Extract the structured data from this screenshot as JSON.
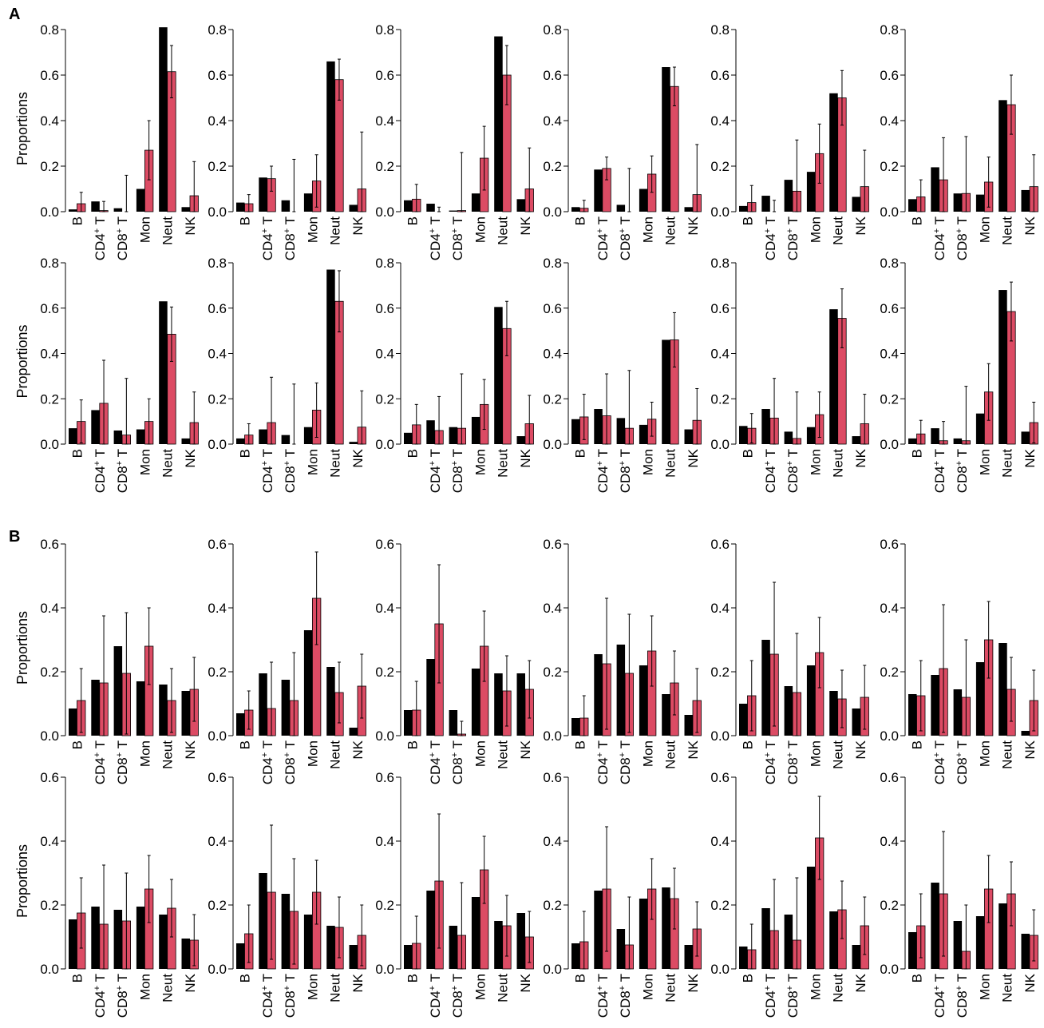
{
  "panels": [
    {
      "label": "A",
      "ylabel": "Proportions",
      "yticks": [
        "0.0",
        "0.2",
        "0.4",
        "0.6",
        "0.8"
      ],
      "ylim": [
        0,
        0.8
      ]
    },
    {
      "label": "B",
      "ylabel": "Proportions",
      "yticks": [
        "0.0",
        "0.2",
        "0.4",
        "0.6"
      ],
      "ylim": [
        0,
        0.6
      ]
    }
  ],
  "categories": [
    {
      "text": "B",
      "sup": "",
      "suffix": ""
    },
    {
      "text": "CD4",
      "sup": "+",
      "suffix": " T"
    },
    {
      "text": "CD8",
      "sup": "+",
      "suffix": " T"
    },
    {
      "text": "Mon",
      "sup": "",
      "suffix": ""
    },
    {
      "text": "Neut",
      "sup": "",
      "suffix": ""
    },
    {
      "text": "NK",
      "sup": "",
      "suffix": ""
    }
  ],
  "colors": {
    "series1": "#000000",
    "series2": "#dc4b64",
    "stroke": "#000000"
  },
  "chart_data": [
    {
      "type": "bar",
      "panel": "A",
      "row": 1,
      "col": 1,
      "ylim": [
        0,
        0.8
      ],
      "black": [
        0.01,
        0.045,
        0.015,
        0.1,
        0.81,
        0.02
      ],
      "red": [
        0.035,
        0.005,
        0.0,
        0.27,
        0.615,
        0.07
      ],
      "red_err": [
        0.05,
        0.04,
        0.16,
        0.13,
        0.115,
        0.15
      ]
    },
    {
      "type": "bar",
      "panel": "A",
      "row": 1,
      "col": 2,
      "ylim": [
        0,
        0.8
      ],
      "black": [
        0.04,
        0.15,
        0.05,
        0.08,
        0.66,
        0.03
      ],
      "red": [
        0.035,
        0.145,
        0.0,
        0.135,
        0.58,
        0.1
      ],
      "red_err": [
        0.04,
        0.055,
        0.23,
        0.115,
        0.09,
        0.25
      ]
    },
    {
      "type": "bar",
      "panel": "A",
      "row": 1,
      "col": 3,
      "ylim": [
        0,
        0.8
      ],
      "black": [
        0.05,
        0.035,
        0.005,
        0.08,
        0.77,
        0.055
      ],
      "red": [
        0.055,
        0.0,
        0.005,
        0.235,
        0.6,
        0.1
      ],
      "red_err": [
        0.065,
        0.02,
        0.255,
        0.14,
        0.13,
        0.18
      ]
    },
    {
      "type": "bar",
      "panel": "A",
      "row": 1,
      "col": 4,
      "ylim": [
        0,
        0.8
      ],
      "black": [
        0.02,
        0.185,
        0.03,
        0.1,
        0.635,
        0.02
      ],
      "red": [
        0.015,
        0.19,
        0.0,
        0.165,
        0.55,
        0.075
      ],
      "red_err": [
        0.035,
        0.05,
        0.19,
        0.08,
        0.085,
        0.22
      ]
    },
    {
      "type": "bar",
      "panel": "A",
      "row": 1,
      "col": 5,
      "ylim": [
        0,
        0.8
      ],
      "black": [
        0.025,
        0.07,
        0.14,
        0.175,
        0.52,
        0.065
      ],
      "red": [
        0.04,
        0.0,
        0.09,
        0.255,
        0.5,
        0.11
      ],
      "red_err": [
        0.075,
        0.05,
        0.225,
        0.13,
        0.12,
        0.16
      ]
    },
    {
      "type": "bar",
      "panel": "A",
      "row": 1,
      "col": 6,
      "ylim": [
        0,
        0.8
      ],
      "black": [
        0.055,
        0.195,
        0.08,
        0.075,
        0.49,
        0.095
      ],
      "red": [
        0.065,
        0.14,
        0.08,
        0.13,
        0.47,
        0.11
      ],
      "red_err": [
        0.075,
        0.185,
        0.25,
        0.11,
        0.13,
        0.14
      ]
    },
    {
      "type": "bar",
      "panel": "A",
      "row": 2,
      "col": 1,
      "ylim": [
        0,
        0.8
      ],
      "black": [
        0.07,
        0.15,
        0.06,
        0.065,
        0.63,
        0.025
      ],
      "red": [
        0.1,
        0.18,
        0.04,
        0.1,
        0.485,
        0.095
      ],
      "red_err": [
        0.095,
        0.19,
        0.25,
        0.1,
        0.12,
        0.135
      ]
    },
    {
      "type": "bar",
      "panel": "A",
      "row": 2,
      "col": 2,
      "ylim": [
        0,
        0.8
      ],
      "black": [
        0.025,
        0.065,
        0.04,
        0.075,
        0.77,
        0.01
      ],
      "red": [
        0.04,
        0.095,
        0.0,
        0.15,
        0.63,
        0.075
      ],
      "red_err": [
        0.05,
        0.2,
        0.265,
        0.12,
        0.135,
        0.16
      ]
    },
    {
      "type": "bar",
      "panel": "A",
      "row": 2,
      "col": 3,
      "ylim": [
        0,
        0.8
      ],
      "black": [
        0.05,
        0.105,
        0.075,
        0.12,
        0.605,
        0.035
      ],
      "red": [
        0.085,
        0.06,
        0.07,
        0.175,
        0.51,
        0.09
      ],
      "red_err": [
        0.09,
        0.15,
        0.24,
        0.11,
        0.12,
        0.125
      ]
    },
    {
      "type": "bar",
      "panel": "A",
      "row": 2,
      "col": 4,
      "ylim": [
        0,
        0.8
      ],
      "black": [
        0.11,
        0.155,
        0.115,
        0.085,
        0.46,
        0.065
      ],
      "red": [
        0.12,
        0.125,
        0.07,
        0.11,
        0.46,
        0.105
      ],
      "red_err": [
        0.1,
        0.185,
        0.255,
        0.075,
        0.12,
        0.14
      ]
    },
    {
      "type": "bar",
      "panel": "A",
      "row": 2,
      "col": 5,
      "ylim": [
        0,
        0.8
      ],
      "black": [
        0.08,
        0.155,
        0.055,
        0.075,
        0.595,
        0.035
      ],
      "red": [
        0.07,
        0.115,
        0.025,
        0.13,
        0.555,
        0.09
      ],
      "red_err": [
        0.065,
        0.175,
        0.205,
        0.1,
        0.13,
        0.13
      ]
    },
    {
      "type": "bar",
      "panel": "A",
      "row": 2,
      "col": 6,
      "ylim": [
        0,
        0.8
      ],
      "black": [
        0.025,
        0.07,
        0.025,
        0.135,
        0.68,
        0.055
      ],
      "red": [
        0.045,
        0.015,
        0.015,
        0.23,
        0.585,
        0.095
      ],
      "red_err": [
        0.06,
        0.085,
        0.24,
        0.125,
        0.13,
        0.09
      ]
    },
    {
      "type": "bar",
      "panel": "B",
      "row": 1,
      "col": 1,
      "ylim": [
        0,
        0.6
      ],
      "black": [
        0.085,
        0.175,
        0.28,
        0.17,
        0.16,
        0.14
      ],
      "red": [
        0.11,
        0.165,
        0.195,
        0.28,
        0.11,
        0.145
      ],
      "red_err": [
        0.1,
        0.21,
        0.19,
        0.12,
        0.1,
        0.1
      ]
    },
    {
      "type": "bar",
      "panel": "B",
      "row": 1,
      "col": 2,
      "ylim": [
        0,
        0.6
      ],
      "black": [
        0.07,
        0.195,
        0.175,
        0.33,
        0.215,
        0.025
      ],
      "red": [
        0.08,
        0.085,
        0.11,
        0.43,
        0.135,
        0.155
      ],
      "red_err": [
        0.06,
        0.145,
        0.15,
        0.145,
        0.095,
        0.1
      ]
    },
    {
      "type": "bar",
      "panel": "B",
      "row": 1,
      "col": 3,
      "ylim": [
        0,
        0.6
      ],
      "black": [
        0.08,
        0.24,
        0.08,
        0.21,
        0.195,
        0.195
      ],
      "red": [
        0.08,
        0.35,
        0.005,
        0.28,
        0.14,
        0.145
      ],
      "red_err": [
        0.09,
        0.185,
        0.04,
        0.11,
        0.11,
        0.09
      ]
    },
    {
      "type": "bar",
      "panel": "B",
      "row": 1,
      "col": 4,
      "ylim": [
        0,
        0.6
      ],
      "black": [
        0.055,
        0.255,
        0.285,
        0.22,
        0.13,
        0.065
      ],
      "red": [
        0.055,
        0.225,
        0.195,
        0.265,
        0.165,
        0.11
      ],
      "red_err": [
        0.07,
        0.205,
        0.185,
        0.11,
        0.1,
        0.1
      ]
    },
    {
      "type": "bar",
      "panel": "B",
      "row": 1,
      "col": 5,
      "ylim": [
        0,
        0.6
      ],
      "black": [
        0.1,
        0.3,
        0.155,
        0.22,
        0.14,
        0.085
      ],
      "red": [
        0.125,
        0.255,
        0.135,
        0.26,
        0.115,
        0.12
      ],
      "red_err": [
        0.11,
        0.225,
        0.185,
        0.11,
        0.09,
        0.1
      ]
    },
    {
      "type": "bar",
      "panel": "B",
      "row": 1,
      "col": 6,
      "ylim": [
        0,
        0.6
      ],
      "black": [
        0.13,
        0.19,
        0.145,
        0.23,
        0.29,
        0.015
      ],
      "red": [
        0.125,
        0.21,
        0.12,
        0.3,
        0.145,
        0.11
      ],
      "red_err": [
        0.11,
        0.2,
        0.18,
        0.12,
        0.1,
        0.095
      ]
    },
    {
      "type": "bar",
      "panel": "B",
      "row": 2,
      "col": 1,
      "ylim": [
        0,
        0.6
      ],
      "black": [
        0.155,
        0.195,
        0.185,
        0.195,
        0.17,
        0.095
      ],
      "red": [
        0.175,
        0.14,
        0.15,
        0.25,
        0.19,
        0.09
      ],
      "red_err": [
        0.11,
        0.185,
        0.15,
        0.105,
        0.09,
        0.08
      ]
    },
    {
      "type": "bar",
      "panel": "B",
      "row": 2,
      "col": 2,
      "ylim": [
        0,
        0.6
      ],
      "black": [
        0.08,
        0.3,
        0.235,
        0.17,
        0.135,
        0.075
      ],
      "red": [
        0.11,
        0.24,
        0.18,
        0.24,
        0.13,
        0.105
      ],
      "red_err": [
        0.09,
        0.21,
        0.165,
        0.1,
        0.095,
        0.095
      ]
    },
    {
      "type": "bar",
      "panel": "B",
      "row": 2,
      "col": 3,
      "ylim": [
        0,
        0.6
      ],
      "black": [
        0.075,
        0.245,
        0.135,
        0.225,
        0.15,
        0.175
      ],
      "red": [
        0.08,
        0.275,
        0.105,
        0.31,
        0.135,
        0.1
      ],
      "red_err": [
        0.085,
        0.21,
        0.165,
        0.105,
        0.095,
        0.08
      ]
    },
    {
      "type": "bar",
      "panel": "B",
      "row": 2,
      "col": 4,
      "ylim": [
        0,
        0.6
      ],
      "black": [
        0.08,
        0.245,
        0.125,
        0.22,
        0.255,
        0.075
      ],
      "red": [
        0.085,
        0.25,
        0.075,
        0.25,
        0.22,
        0.125
      ],
      "red_err": [
        0.095,
        0.195,
        0.15,
        0.095,
        0.095,
        0.085
      ]
    },
    {
      "type": "bar",
      "panel": "B",
      "row": 2,
      "col": 5,
      "ylim": [
        0,
        0.6
      ],
      "black": [
        0.07,
        0.19,
        0.17,
        0.32,
        0.18,
        0.075
      ],
      "red": [
        0.06,
        0.12,
        0.09,
        0.41,
        0.185,
        0.135
      ],
      "red_err": [
        0.08,
        0.16,
        0.195,
        0.13,
        0.09,
        0.09
      ]
    },
    {
      "type": "bar",
      "panel": "B",
      "row": 2,
      "col": 6,
      "ylim": [
        0,
        0.6
      ],
      "black": [
        0.115,
        0.27,
        0.15,
        0.165,
        0.205,
        0.11
      ],
      "red": [
        0.135,
        0.235,
        0.055,
        0.25,
        0.235,
        0.105
      ],
      "red_err": [
        0.1,
        0.195,
        0.145,
        0.105,
        0.1,
        0.08
      ]
    }
  ]
}
